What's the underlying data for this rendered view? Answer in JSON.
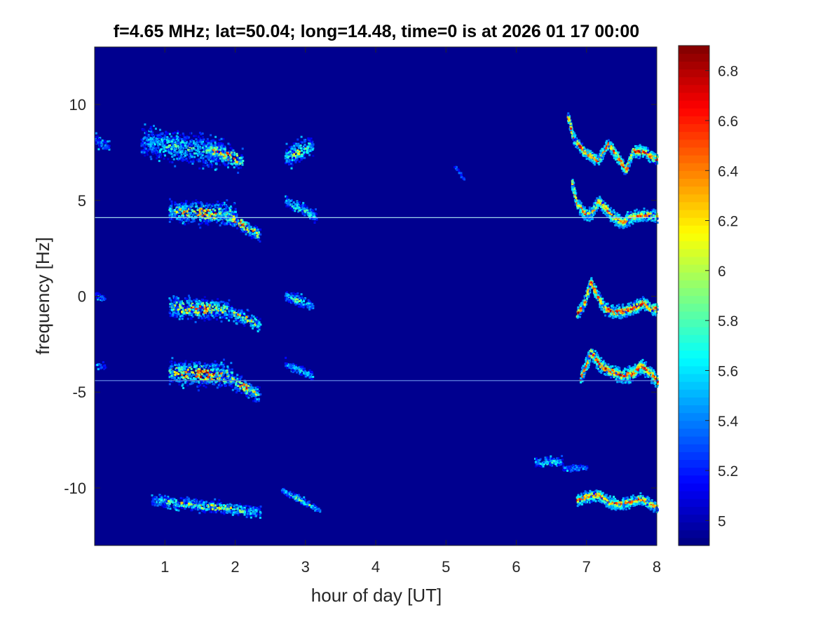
{
  "chart_data": {
    "type": "heatmap",
    "title": "f=4.65 MHz;  lat=50.04; long=14.48, time=0 is at 2026 01 17 00:00",
    "xlabel": "hour of day [UT]",
    "ylabel": "frequency [Hz]",
    "xlim": [
      0,
      8
    ],
    "ylim": [
      -13,
      13
    ],
    "x_ticks": [
      1,
      2,
      3,
      4,
      5,
      6,
      7,
      8
    ],
    "x_tick_labels": [
      "1",
      "2",
      "3",
      "4",
      "5",
      "6",
      "7",
      "8"
    ],
    "y_ticks": [
      10,
      5,
      0,
      -5,
      -10
    ],
    "y_tick_labels": [
      "10",
      "5",
      "0",
      "-5",
      "-10"
    ],
    "colorbar": {
      "colormap": "jet",
      "range": [
        4.9,
        6.9
      ],
      "ticks": [
        5,
        5.2,
        5.4,
        5.6,
        5.8,
        6,
        6.2,
        6.4,
        6.6,
        6.8
      ],
      "tick_labels": [
        "5",
        "5.2",
        "5.4",
        "5.6",
        "5.8",
        "6",
        "6.2",
        "6.4",
        "6.6",
        "6.8"
      ]
    },
    "background_color": "#00008F",
    "grid": false,
    "horizontal_lines": [
      {
        "y": 4.1,
        "color": "#9FD8EC"
      },
      {
        "y": -4.4,
        "color": "#5A7AD8"
      }
    ],
    "blobs": [
      {
        "x0": 0.65,
        "x1": 1.85,
        "yc": 7.8,
        "slope": -0.5,
        "thick": 1.3,
        "peak": 5.9
      },
      {
        "x0": 1.6,
        "x1": 2.1,
        "yc": 7.4,
        "slope": -1.2,
        "thick": 0.8,
        "peak": 6.7
      },
      {
        "x0": 2.7,
        "x1": 3.1,
        "yc": 7.6,
        "slope": 1.5,
        "thick": 0.9,
        "peak": 6.2
      },
      {
        "x0": 1.05,
        "x1": 2.0,
        "yc": 4.4,
        "slope": -0.2,
        "thick": 0.9,
        "peak": 6.6
      },
      {
        "x0": 1.8,
        "x1": 2.35,
        "yc": 3.8,
        "slope": -2.2,
        "thick": 0.6,
        "peak": 6.8
      },
      {
        "x0": 2.7,
        "x1": 3.15,
        "yc": 4.6,
        "slope": -2.0,
        "thick": 0.5,
        "peak": 6.1
      },
      {
        "x0": 1.05,
        "x1": 1.9,
        "yc": -0.6,
        "slope": -0.2,
        "thick": 0.9,
        "peak": 6.6
      },
      {
        "x0": 1.9,
        "x1": 2.35,
        "yc": -1.1,
        "slope": -1.5,
        "thick": 0.6,
        "peak": 6.4
      },
      {
        "x0": 2.7,
        "x1": 3.1,
        "yc": -0.2,
        "slope": -1.5,
        "thick": 0.5,
        "peak": 6.0
      },
      {
        "x0": 1.05,
        "x1": 1.95,
        "yc": -4.0,
        "slope": -0.2,
        "thick": 1.0,
        "peak": 6.8
      },
      {
        "x0": 1.9,
        "x1": 2.35,
        "yc": -4.7,
        "slope": -2.0,
        "thick": 0.7,
        "peak": 6.6
      },
      {
        "x0": 2.7,
        "x1": 3.1,
        "yc": -3.8,
        "slope": -1.5,
        "thick": 0.4,
        "peak": 5.9
      },
      {
        "x0": 6.25,
        "x1": 6.65,
        "yc": -8.6,
        "slope": 0.0,
        "thick": 0.4,
        "peak": 6.0
      },
      {
        "x0": 6.65,
        "x1": 7.0,
        "yc": -8.9,
        "slope": 0.0,
        "thick": 0.3,
        "peak": 5.6
      },
      {
        "x0": 0.8,
        "x1": 2.35,
        "yc": -10.9,
        "slope": -0.4,
        "thick": 0.5,
        "peak": 6.3
      },
      {
        "x0": 2.65,
        "x1": 3.2,
        "yc": -10.6,
        "slope": -2.0,
        "thick": 0.3,
        "peak": 6.0
      },
      {
        "x0": 5.1,
        "x1": 5.25,
        "yc": 6.5,
        "slope": -5.0,
        "thick": 0.2,
        "peak": 5.4
      },
      {
        "x0": 0.0,
        "x1": 0.2,
        "yc": 8.0,
        "slope": -2.0,
        "thick": 0.5,
        "peak": 5.5
      },
      {
        "x0": 0.0,
        "x1": 0.15,
        "yc": -3.6,
        "slope": 0.0,
        "thick": 0.3,
        "peak": 5.4
      },
      {
        "x0": 0.0,
        "x1": 0.15,
        "yc": 0.0,
        "slope": -2.0,
        "thick": 0.3,
        "peak": 5.4
      }
    ],
    "tracks": [
      {
        "pts": [
          [
            6.72,
            9.5
          ],
          [
            6.8,
            8.3
          ],
          [
            6.95,
            7.6
          ],
          [
            7.15,
            7.1
          ],
          [
            7.3,
            8.0
          ],
          [
            7.45,
            7.2
          ],
          [
            7.55,
            6.6
          ],
          [
            7.65,
            7.6
          ],
          [
            7.8,
            7.6
          ],
          [
            7.92,
            7.3
          ],
          [
            8.0,
            7.2
          ]
        ],
        "peak": 6.8,
        "thick": 0.35
      },
      {
        "pts": [
          [
            6.78,
            6.0
          ],
          [
            6.85,
            4.9
          ],
          [
            6.95,
            4.4
          ],
          [
            7.05,
            4.3
          ],
          [
            7.15,
            5.0
          ],
          [
            7.25,
            4.7
          ],
          [
            7.35,
            4.2
          ],
          [
            7.5,
            3.9
          ],
          [
            7.65,
            4.2
          ],
          [
            7.8,
            4.3
          ],
          [
            8.0,
            4.2
          ]
        ],
        "peak": 6.6,
        "thick": 0.4
      },
      {
        "pts": [
          [
            6.85,
            -0.9
          ],
          [
            6.95,
            -0.4
          ],
          [
            7.05,
            0.8
          ],
          [
            7.15,
            0.0
          ],
          [
            7.25,
            -0.6
          ],
          [
            7.4,
            -0.8
          ],
          [
            7.55,
            -0.7
          ],
          [
            7.7,
            -0.5
          ],
          [
            7.8,
            -0.3
          ],
          [
            7.9,
            -0.6
          ],
          [
            8.0,
            -0.6
          ]
        ],
        "peak": 6.8,
        "thick": 0.4
      },
      {
        "pts": [
          [
            6.9,
            -4.3
          ],
          [
            7.0,
            -3.4
          ],
          [
            7.05,
            -2.9
          ],
          [
            7.2,
            -3.6
          ],
          [
            7.35,
            -3.9
          ],
          [
            7.5,
            -4.1
          ],
          [
            7.65,
            -4.0
          ],
          [
            7.75,
            -3.6
          ],
          [
            7.85,
            -3.8
          ],
          [
            8.0,
            -4.4
          ]
        ],
        "peak": 6.8,
        "thick": 0.45
      },
      {
        "pts": [
          [
            6.85,
            -10.6
          ],
          [
            7.0,
            -10.4
          ],
          [
            7.15,
            -10.3
          ],
          [
            7.3,
            -10.7
          ],
          [
            7.45,
            -10.8
          ],
          [
            7.6,
            -10.7
          ],
          [
            7.75,
            -10.5
          ],
          [
            7.9,
            -10.8
          ],
          [
            8.0,
            -11.0
          ]
        ],
        "peak": 6.7,
        "thick": 0.35
      }
    ]
  }
}
